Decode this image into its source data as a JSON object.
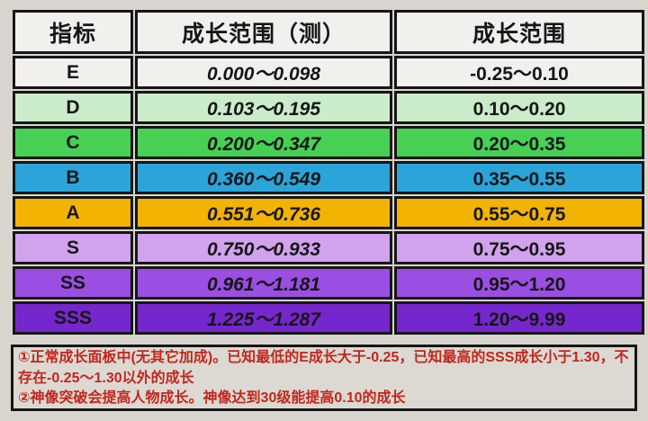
{
  "colors": {
    "page_bg": "#d8d5cf",
    "cell_border": "#161616",
    "cell_text": "#161616",
    "header_bg": "#f1f0ed",
    "note_bg": "#dcd9d3",
    "note_text": "#c3261b"
  },
  "table": {
    "columns": [
      {
        "label": "指标"
      },
      {
        "label": "成长范围（测）"
      },
      {
        "label": "成长范围"
      }
    ],
    "rows": [
      {
        "grade": "E",
        "measured": "0.000～0.098",
        "range": "-0.25～0.10",
        "color": "#f1f0ed"
      },
      {
        "grade": "D",
        "measured": "0.103～0.195",
        "range": "0.10～0.20",
        "color": "#cbeccb"
      },
      {
        "grade": "C",
        "measured": "0.200～0.347",
        "range": "0.20～0.35",
        "color": "#46d155"
      },
      {
        "grade": "B",
        "measured": "0.360～0.549",
        "range": "0.35～0.55",
        "color": "#2ba4da"
      },
      {
        "grade": "A",
        "measured": "0.551～0.736",
        "range": "0.55～0.75",
        "color": "#f2b303"
      },
      {
        "grade": "S",
        "measured": "0.750～0.933",
        "range": "0.75～0.95",
        "color": "#d0a3ec"
      },
      {
        "grade": "SS",
        "measured": "0.961～1.181",
        "range": "0.95～1.20",
        "color": "#9a4ee2"
      },
      {
        "grade": "SSS",
        "measured": "1.225～1.287",
        "range": "1.20～9.99",
        "color": "#7527cd"
      }
    ]
  },
  "notes": {
    "note1": "①正常成长面板中(无其它加成)。已知最低的E成长大于-0.25，已知最高的SSS成长小于1.30，不存在-0.25～1.30以外的成长",
    "note2": "②神像突破会提高人物成长。神像达到30级能提高0.10的成长"
  },
  "chart_data": {
    "type": "table",
    "title": "",
    "columns": [
      "指标",
      "成长范围（测）",
      "成长范围"
    ],
    "rows": [
      [
        "E",
        "0.000～0.098",
        "-0.25～0.10"
      ],
      [
        "D",
        "0.103～0.195",
        "0.10～0.20"
      ],
      [
        "C",
        "0.200～0.347",
        "0.20～0.35"
      ],
      [
        "B",
        "0.360～0.549",
        "0.35～0.55"
      ],
      [
        "A",
        "0.551～0.736",
        "0.55～0.75"
      ],
      [
        "S",
        "0.750～0.933",
        "0.75～0.95"
      ],
      [
        "SS",
        "0.961～1.181",
        "0.95～1.20"
      ],
      [
        "SSS",
        "1.225～1.287",
        "1.20～9.99"
      ]
    ],
    "row_colors": [
      "#f1f0ed",
      "#cbeccb",
      "#46d155",
      "#2ba4da",
      "#f2b303",
      "#d0a3ec",
      "#9a4ee2",
      "#7527cd"
    ],
    "annotations": [
      "①正常成长面板中(无其它加成)。已知最低的E成长大于-0.25，已知最高的SSS成长小于1.30，不存在-0.25～1.30以外的成长",
      "②神像突破会提高人物成长。神像达到30级能提高0.10的成长"
    ]
  }
}
